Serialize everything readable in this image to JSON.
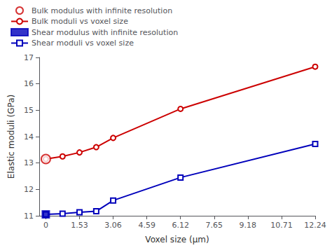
{
  "chart_data": {
    "type": "line",
    "xlabel": "Voxel size (μm)",
    "ylabel": "Elastic moduli (GPa)",
    "xlim": [
      -0.3,
      12.24
    ],
    "xticks": [
      0,
      1.53,
      3.06,
      4.59,
      6.12,
      7.65,
      9.18,
      10.71,
      12.24
    ],
    "ylim": [
      11,
      17
    ],
    "yticks": [
      11,
      12,
      13,
      14,
      15,
      16,
      17
    ],
    "grid": false,
    "legend": "upper left",
    "series": [
      {
        "name": "Bulk modulus with infinite resolution",
        "type": "scatter",
        "color": "#cc0000",
        "marker": "open_circle",
        "x": [
          0
        ],
        "values": [
          13.15
        ]
      },
      {
        "name": "Bulk moduli vs voxel size",
        "type": "line",
        "color": "#cc0000",
        "marker": "open_circle",
        "line_style": "solid",
        "x": [
          0,
          0.76,
          1.53,
          2.29,
          3.06,
          6.12,
          12.24
        ],
        "values": [
          13.15,
          13.25,
          13.4,
          13.6,
          13.95,
          15.05,
          16.65
        ]
      },
      {
        "name": "Shear modulus with infinite resolution",
        "type": "scatter",
        "color": "#0000bb",
        "marker": "filled_square",
        "x": [
          0
        ],
        "values": [
          11.05
        ]
      },
      {
        "name": "Shear moduli vs voxel size",
        "type": "line",
        "color": "#0000bb",
        "marker": "open_square",
        "line_style": "solid",
        "x": [
          0,
          0.76,
          1.53,
          2.29,
          3.06,
          6.12,
          12.24
        ],
        "values": [
          11.05,
          11.08,
          11.13,
          11.17,
          11.58,
          12.45,
          13.72
        ]
      }
    ]
  }
}
